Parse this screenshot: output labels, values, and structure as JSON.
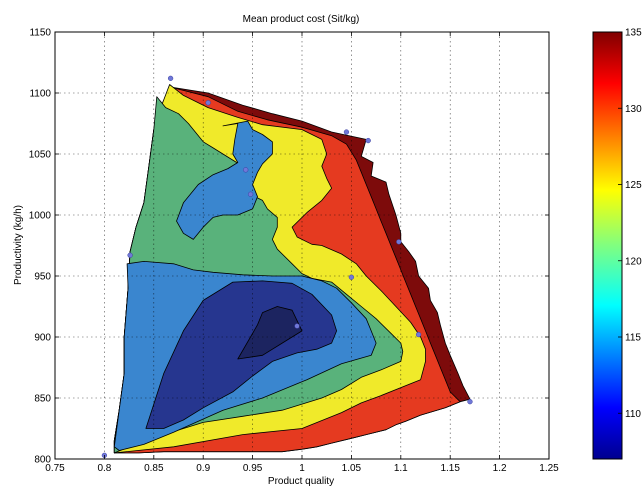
{
  "chart_data": {
    "type": "contourf",
    "title": "Mean product cost (Sit/kg)",
    "xlabel": "Product quality",
    "ylabel": "Productivity (kg/h)",
    "xlim": [
      0.75,
      1.25
    ],
    "ylim": [
      800,
      1150
    ],
    "xticks": [
      "0.75",
      "0.8",
      "0.85",
      "0.9",
      "0.95",
      "1",
      "1.05",
      "1.1",
      "1.15",
      "1.2",
      "1.25"
    ],
    "yticks": [
      "800",
      "850",
      "900",
      "950",
      "1000",
      "1050",
      "1100",
      "1150"
    ],
    "grid": true,
    "colorbar": {
      "range": [
        107,
        135
      ],
      "ticks": [
        "110",
        "115",
        "120",
        "125",
        "130",
        "135"
      ],
      "colormap": "jet"
    },
    "levels": [
      {
        "value": 110,
        "color": "#26368f"
      },
      {
        "value": 115,
        "color": "#3a86cf"
      },
      {
        "value": 120,
        "color": "#59b27b"
      },
      {
        "value": 125,
        "color": "#f0ea2a"
      },
      {
        "value": 130,
        "color": "#e53a20"
      },
      {
        "value": 135,
        "color": "#7d0b0b"
      }
    ],
    "region_levels": [
      135,
      130,
      125,
      120,
      115,
      110,
      107
    ],
    "regions": [
      {
        "level": 135,
        "points": [
          [
            0.866,
            1105
          ],
          [
            0.905,
            1100
          ],
          [
            0.94,
            1090
          ],
          [
            0.97,
            1083
          ],
          [
            1.0,
            1077
          ],
          [
            1.03,
            1068
          ],
          [
            1.065,
            1062
          ],
          [
            1.06,
            1048
          ],
          [
            1.072,
            1043
          ],
          [
            1.07,
            1032
          ],
          [
            1.085,
            1027
          ],
          [
            1.088,
            1017
          ],
          [
            1.095,
            1000
          ],
          [
            1.1,
            985
          ],
          [
            1.1,
            978
          ],
          [
            1.108,
            970
          ],
          [
            1.115,
            962
          ],
          [
            1.118,
            950
          ],
          [
            1.128,
            940
          ],
          [
            1.13,
            930
          ],
          [
            1.137,
            920
          ],
          [
            1.14,
            910
          ],
          [
            1.145,
            895
          ],
          [
            1.15,
            885
          ],
          [
            1.158,
            870
          ],
          [
            1.163,
            860
          ],
          [
            1.17,
            849
          ],
          [
            1.16,
            847
          ],
          [
            1.145,
            842
          ],
          [
            1.12,
            836
          ],
          [
            1.105,
            831
          ],
          [
            1.095,
            828
          ],
          [
            1.085,
            824
          ],
          [
            1.065,
            820
          ],
          [
            1.05,
            817
          ],
          [
            1.03,
            813
          ],
          [
            1.015,
            810
          ],
          [
            1.0,
            808
          ],
          [
            0.98,
            806
          ],
          [
            0.94,
            806
          ],
          [
            0.9,
            806
          ],
          [
            0.86,
            806
          ],
          [
            0.835,
            805
          ],
          [
            0.81,
            805
          ],
          [
            0.81,
            815
          ],
          [
            0.815,
            840
          ],
          [
            0.82,
            870
          ],
          [
            0.82,
            900
          ],
          [
            0.824,
            940
          ],
          [
            0.826,
            970
          ],
          [
            0.832,
            990
          ],
          [
            0.84,
            1010
          ],
          [
            0.845,
            1040
          ],
          [
            0.85,
            1070
          ],
          [
            0.858,
            1090
          ]
        ]
      },
      {
        "level": 130,
        "points": [
          [
            0.866,
            1105
          ],
          [
            0.905,
            1097
          ],
          [
            0.935,
            1085
          ],
          [
            0.965,
            1078
          ],
          [
            1.0,
            1072
          ],
          [
            1.03,
            1065
          ],
          [
            1.045,
            1058
          ],
          [
            1.055,
            1045
          ],
          [
            1.06,
            1035
          ],
          [
            1.065,
            1025
          ],
          [
            1.07,
            1015
          ],
          [
            1.075,
            1005
          ],
          [
            1.08,
            995
          ],
          [
            1.085,
            985
          ],
          [
            1.09,
            975
          ],
          [
            1.095,
            965
          ],
          [
            1.1,
            955
          ],
          [
            1.105,
            945
          ],
          [
            1.11,
            935
          ],
          [
            1.115,
            925
          ],
          [
            1.12,
            915
          ],
          [
            1.125,
            905
          ],
          [
            1.13,
            895
          ],
          [
            1.135,
            885
          ],
          [
            1.14,
            875
          ],
          [
            1.145,
            865
          ],
          [
            1.15,
            855
          ],
          [
            1.16,
            847
          ],
          [
            1.145,
            842
          ],
          [
            1.12,
            836
          ],
          [
            1.105,
            831
          ],
          [
            1.095,
            828
          ],
          [
            1.085,
            824
          ],
          [
            1.065,
            820
          ],
          [
            1.05,
            817
          ],
          [
            1.03,
            813
          ],
          [
            1.015,
            810
          ],
          [
            1.0,
            808
          ],
          [
            0.98,
            806
          ],
          [
            0.94,
            806
          ],
          [
            0.9,
            806
          ],
          [
            0.86,
            806
          ],
          [
            0.835,
            805
          ],
          [
            0.81,
            805
          ],
          [
            0.81,
            815
          ],
          [
            0.815,
            840
          ],
          [
            0.82,
            870
          ],
          [
            0.82,
            900
          ],
          [
            0.824,
            940
          ],
          [
            0.826,
            970
          ],
          [
            0.832,
            990
          ],
          [
            0.84,
            1010
          ],
          [
            0.845,
            1040
          ],
          [
            0.85,
            1070
          ],
          [
            0.858,
            1090
          ]
        ]
      },
      {
        "level": 125,
        "points": [
          [
            0.866,
            1107
          ],
          [
            0.88,
            1098
          ],
          [
            0.905,
            1088
          ],
          [
            0.935,
            1080
          ],
          [
            0.96,
            1074
          ],
          [
            1.0,
            1070
          ],
          [
            1.02,
            1062
          ],
          [
            1.025,
            1050
          ],
          [
            1.02,
            1040
          ],
          [
            1.025,
            1030
          ],
          [
            1.03,
            1022
          ],
          [
            1.02,
            1012
          ],
          [
            1.005,
            1002
          ],
          [
            0.99,
            990
          ],
          [
            0.995,
            982
          ],
          [
            1.01,
            976
          ],
          [
            1.02,
            975
          ],
          [
            1.04,
            968
          ],
          [
            1.055,
            960
          ],
          [
            1.065,
            950
          ],
          [
            1.08,
            938
          ],
          [
            1.095,
            925
          ],
          [
            1.11,
            912
          ],
          [
            1.12,
            900
          ],
          [
            1.125,
            890
          ],
          [
            1.125,
            880
          ],
          [
            1.12,
            865
          ],
          [
            1.08,
            852
          ],
          [
            1.06,
            846
          ],
          [
            1.04,
            838
          ],
          [
            1.0,
            825
          ],
          [
            0.94,
            820
          ],
          [
            0.87,
            810
          ],
          [
            0.81,
            805
          ],
          [
            0.81,
            815
          ],
          [
            0.815,
            840
          ],
          [
            0.82,
            870
          ],
          [
            0.82,
            900
          ],
          [
            0.824,
            940
          ],
          [
            0.826,
            970
          ],
          [
            0.832,
            990
          ],
          [
            0.84,
            1010
          ],
          [
            0.845,
            1040
          ],
          [
            0.85,
            1070
          ],
          [
            0.858,
            1090
          ]
        ]
      },
      {
        "level": 120,
        "points": [
          [
            0.853,
            1097
          ],
          [
            0.862,
            1088
          ],
          [
            0.875,
            1083
          ],
          [
            0.885,
            1075
          ],
          [
            0.9,
            1060
          ],
          [
            0.91,
            1055
          ],
          [
            0.93,
            1045
          ],
          [
            0.94,
            1040
          ],
          [
            0.945,
            1032
          ],
          [
            0.94,
            1022
          ],
          [
            0.945,
            1018
          ],
          [
            0.96,
            1012
          ],
          [
            0.965,
            1005
          ],
          [
            0.975,
            998
          ],
          [
            0.975,
            990
          ],
          [
            0.97,
            980
          ],
          [
            0.975,
            972
          ],
          [
            0.99,
            960
          ],
          [
            1.0,
            952
          ],
          [
            1.01,
            948
          ],
          [
            1.03,
            945
          ],
          [
            1.045,
            935
          ],
          [
            1.06,
            925
          ],
          [
            1.075,
            915
          ],
          [
            1.09,
            903
          ],
          [
            1.1,
            895
          ],
          [
            1.102,
            888
          ],
          [
            1.1,
            880
          ],
          [
            1.08,
            873
          ],
          [
            1.06,
            867
          ],
          [
            1.04,
            857
          ],
          [
            1.02,
            850
          ],
          [
            0.98,
            840
          ],
          [
            0.94,
            835
          ],
          [
            0.9,
            830
          ],
          [
            0.86,
            820
          ],
          [
            0.835,
            813
          ],
          [
            0.81,
            805
          ],
          [
            0.81,
            815
          ],
          [
            0.815,
            840
          ],
          [
            0.82,
            870
          ],
          [
            0.82,
            900
          ],
          [
            0.824,
            940
          ],
          [
            0.826,
            970
          ],
          [
            0.832,
            990
          ],
          [
            0.84,
            1010
          ],
          [
            0.845,
            1040
          ],
          [
            0.85,
            1070
          ]
        ]
      },
      {
        "level": 115,
        "points": [
          [
            0.92,
            1073
          ],
          [
            0.935,
            1075
          ],
          [
            0.932,
            1062
          ],
          [
            0.93,
            1050
          ],
          [
            0.935,
            1043
          ],
          [
            0.925,
            1038
          ],
          [
            0.91,
            1033
          ],
          [
            0.895,
            1025
          ],
          [
            0.88,
            1010
          ],
          [
            0.873,
            995
          ],
          [
            0.88,
            985
          ],
          [
            0.89,
            980
          ],
          [
            0.9,
            990
          ],
          [
            0.91,
            998
          ],
          [
            0.92,
            1000
          ],
          [
            0.935,
            1000
          ],
          [
            0.95,
            1005
          ],
          [
            0.955,
            1015
          ],
          [
            0.95,
            1025
          ],
          [
            0.955,
            1035
          ],
          [
            0.96,
            1042
          ],
          [
            0.97,
            1050
          ],
          [
            0.97,
            1060
          ],
          [
            0.96,
            1066
          ],
          [
            0.95,
            1070
          ],
          [
            0.945,
            1077
          ]
        ],
        "note": "upper pocket"
      },
      {
        "level": 115,
        "points": [
          [
            0.823,
            960
          ],
          [
            0.84,
            962
          ],
          [
            0.87,
            960
          ],
          [
            0.89,
            955
          ],
          [
            0.91,
            953
          ],
          [
            0.94,
            951
          ],
          [
            0.97,
            950
          ],
          [
            1.0,
            950
          ],
          [
            1.02,
            946
          ],
          [
            1.035,
            940
          ],
          [
            1.05,
            928
          ],
          [
            1.065,
            915
          ],
          [
            1.07,
            905
          ],
          [
            1.075,
            895
          ],
          [
            1.07,
            885
          ],
          [
            1.04,
            878
          ],
          [
            1.005,
            865
          ],
          [
            0.96,
            850
          ],
          [
            0.92,
            840
          ],
          [
            0.87,
            822
          ],
          [
            0.84,
            812
          ],
          [
            0.815,
            807
          ],
          [
            0.81,
            810
          ],
          [
            0.815,
            840
          ],
          [
            0.82,
            870
          ],
          [
            0.82,
            900
          ],
          [
            0.824,
            940
          ]
        ]
      },
      {
        "level": 110,
        "points": [
          [
            0.842,
            825
          ],
          [
            0.86,
            870
          ],
          [
            0.88,
            905
          ],
          [
            0.9,
            930
          ],
          [
            0.93,
            945
          ],
          [
            0.96,
            946
          ],
          [
            0.99,
            944
          ],
          [
            1.01,
            935
          ],
          [
            1.03,
            918
          ],
          [
            1.035,
            905
          ],
          [
            1.03,
            895
          ],
          [
            1.015,
            890
          ],
          [
            0.995,
            887
          ],
          [
            0.97,
            880
          ],
          [
            0.95,
            868
          ],
          [
            0.93,
            855
          ],
          [
            0.9,
            842
          ],
          [
            0.88,
            832
          ],
          [
            0.86,
            825
          ]
        ]
      },
      {
        "level": 107,
        "points": [
          [
            0.935,
            882
          ],
          [
            0.955,
            910
          ],
          [
            0.96,
            920
          ],
          [
            0.975,
            925
          ],
          [
            0.99,
            922
          ],
          [
            1.0,
            905
          ],
          [
            0.98,
            895
          ],
          [
            0.96,
            885
          ]
        ]
      }
    ],
    "sample_points": [
      [
        0.8,
        803
      ],
      [
        0.867,
        1112
      ],
      [
        0.905,
        1092
      ],
      [
        0.826,
        967
      ],
      [
        0.948,
        1017
      ],
      [
        0.943,
        1037
      ],
      [
        1.045,
        1068
      ],
      [
        1.067,
        1061
      ],
      [
        1.05,
        949
      ],
      [
        0.995,
        909
      ],
      [
        1.118,
        902
      ],
      [
        1.17,
        847
      ],
      [
        1.098,
        978
      ]
    ]
  }
}
